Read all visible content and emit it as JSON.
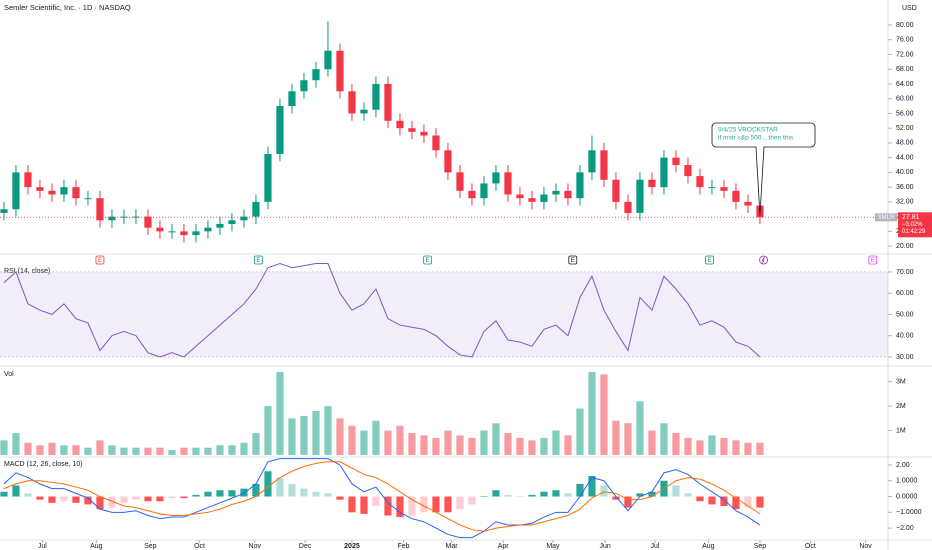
{
  "chart_data": [
    {
      "type": "candlestick",
      "title": "Semler Scientific, Inc. · 1D · NASDAQ",
      "unit": "USD",
      "up_color": "#089981",
      "down_color": "#f23645",
      "xlim": [
        -0.33,
        73.67
      ],
      "xticks": [
        {
          "value": 3.2,
          "label": "Jul"
        },
        {
          "value": 7.7,
          "label": "Aug"
        },
        {
          "value": 12.2,
          "label": "Sep"
        },
        {
          "value": 16.3,
          "label": "Oct"
        },
        {
          "value": 20.9,
          "label": "Nov"
        },
        {
          "value": 25.1,
          "label": "Dec"
        },
        {
          "value": 29,
          "label": "2025"
        },
        {
          "value": 33.3,
          "label": "Feb"
        },
        {
          "value": 37.3,
          "label": "Mar"
        },
        {
          "value": 41.6,
          "label": "Apr"
        },
        {
          "value": 45.75,
          "label": "May"
        },
        {
          "value": 50.1,
          "label": "Jun"
        },
        {
          "value": 54.25,
          "label": "Jul"
        },
        {
          "value": 58.7,
          "label": "Aug"
        },
        {
          "value": 63,
          "label": "Sep"
        },
        {
          "value": 67.2,
          "label": "Oct"
        },
        {
          "value": 71.8,
          "label": "Nov"
        }
      ],
      "ylim": [
        18.4,
        84.6
      ],
      "yticks": [
        {
          "value": 20,
          "label": "20.00"
        },
        {
          "value": 24,
          "label": "24.00"
        },
        {
          "value": 28,
          "label": "28.00"
        },
        {
          "value": 32,
          "label": "32.00"
        },
        {
          "value": 36,
          "label": "36.00"
        },
        {
          "value": 40,
          "label": "40.00"
        },
        {
          "value": 44,
          "label": "44.00"
        },
        {
          "value": 48,
          "label": "48.00"
        },
        {
          "value": 52,
          "label": "52.00"
        },
        {
          "value": 56,
          "label": "56.00"
        },
        {
          "value": 60,
          "label": "60.00"
        },
        {
          "value": 64,
          "label": "64.00"
        },
        {
          "value": 68,
          "label": "68.00"
        },
        {
          "value": 72,
          "label": "72.00"
        },
        {
          "value": 76,
          "label": "76.00"
        },
        {
          "value": 80,
          "label": "80.00"
        }
      ],
      "open": [
        29,
        30,
        40,
        36,
        35,
        34,
        36,
        33,
        33,
        27,
        28,
        28,
        28,
        25,
        24,
        24,
        23,
        24,
        25,
        26,
        27,
        28,
        32,
        45,
        58,
        62,
        65,
        68,
        73,
        62,
        56,
        57,
        64,
        54,
        52,
        51,
        50,
        46,
        40,
        35,
        33,
        37,
        40,
        34,
        33,
        32,
        34,
        35,
        33,
        40,
        46,
        38,
        32,
        29,
        38,
        36,
        44,
        42,
        39,
        36,
        36,
        35,
        32,
        31
      ],
      "high": [
        32,
        42,
        42,
        38,
        37,
        38,
        38,
        35,
        35,
        30,
        30,
        30,
        30,
        27,
        26,
        26,
        26,
        27,
        28,
        29,
        30,
        34,
        47,
        60,
        64,
        67,
        70,
        81,
        75,
        64,
        59,
        66,
        66,
        56,
        54,
        53,
        52,
        48,
        42,
        37,
        39,
        42,
        42,
        36,
        35,
        36,
        37,
        37,
        42,
        50,
        48,
        40,
        34,
        40,
        40,
        46,
        46,
        44,
        41,
        38,
        38,
        37,
        34,
        33
      ],
      "low": [
        27,
        28,
        34,
        33,
        32,
        32,
        31,
        31,
        25,
        25,
        26,
        26,
        23,
        22,
        22,
        21,
        21,
        22,
        23,
        24,
        25,
        26,
        30,
        43,
        56,
        60,
        63,
        66,
        60,
        54,
        54,
        55,
        52,
        50,
        49,
        48,
        44,
        38,
        33,
        31,
        31,
        35,
        32,
        31,
        30,
        30,
        32,
        31,
        31,
        38,
        36,
        30,
        27,
        27,
        34,
        34,
        40,
        37,
        34,
        34,
        33,
        30,
        29,
        26
      ],
      "close": [
        30,
        40,
        36,
        35,
        34,
        36,
        33,
        33,
        27,
        28,
        28,
        28,
        25,
        24,
        24,
        23,
        24,
        25,
        26,
        27,
        28,
        32,
        45,
        58,
        62,
        65,
        68,
        73,
        62,
        56,
        57,
        64,
        54,
        52,
        51,
        50,
        46,
        40,
        35,
        33,
        37,
        40,
        34,
        33,
        32,
        34,
        35,
        33,
        40,
        46,
        38,
        32,
        29,
        38,
        36,
        44,
        42,
        39,
        36,
        36,
        35,
        32,
        31,
        27.81
      ],
      "last_price": {
        "symbol": "SMLR",
        "value": 27.81,
        "change": "−3.02%",
        "countdown": "01:42:29"
      },
      "annotation": {
        "title": "9/4/25 VROCKSTAR",
        "text": "if mstr s&p 500... then this"
      },
      "events": [
        {
          "index": 8,
          "label": "E",
          "color": "#f23645"
        },
        {
          "index": 21.2,
          "label": "E",
          "color": "#089981"
        },
        {
          "index": 35.3,
          "label": "E",
          "color": "#089981"
        },
        {
          "index": 47.4,
          "label": "E",
          "color": "#131722"
        },
        {
          "index": 58.8,
          "label": "E",
          "color": "#089981"
        },
        {
          "index": 63.3,
          "color": "#9c27b0"
        },
        {
          "index": 72.4,
          "label": "E",
          "color": "#e040fb"
        }
      ]
    },
    {
      "type": "line",
      "title": "RSI (14, close)",
      "color": "#7e57c2",
      "band": [
        30,
        70
      ],
      "ylim": [
        26.2,
        74.7
      ],
      "yticks": [
        {
          "value": 30,
          "label": "30.00"
        },
        {
          "value": 40,
          "label": "40.00"
        },
        {
          "value": 50,
          "label": "50.00"
        },
        {
          "value": 60,
          "label": "60.00"
        },
        {
          "value": 70,
          "label": "70.00"
        }
      ],
      "values": [
        65,
        70,
        55,
        52,
        50,
        55,
        48,
        46,
        33,
        40,
        42,
        40,
        32,
        30,
        32,
        30,
        35,
        40,
        45,
        50,
        55,
        62,
        72,
        74,
        72,
        73,
        74,
        74,
        60,
        52,
        55,
        62,
        48,
        45,
        44,
        43,
        40,
        35,
        31,
        30,
        42,
        47,
        38,
        37,
        35,
        43,
        45,
        40,
        58,
        68,
        52,
        42,
        33,
        58,
        52,
        68,
        62,
        55,
        45,
        47,
        44,
        37,
        35,
        30
      ]
    },
    {
      "type": "volume",
      "title": "Vol",
      "ylim": [
        0,
        3600000
      ],
      "yticks": [
        {
          "value": 1000000,
          "label": "1M"
        },
        {
          "value": 2000000,
          "label": "2M"
        },
        {
          "value": 3000000,
          "label": "3M"
        }
      ],
      "values": [
        600000,
        900000,
        500000,
        400000,
        500000,
        400000,
        400000,
        300000,
        600000,
        400000,
        300000,
        300000,
        300000,
        300000,
        200000,
        300000,
        300000,
        300000,
        400000,
        400000,
        500000,
        900000,
        2000000,
        3400000,
        1500000,
        1600000,
        1800000,
        2000000,
        1500000,
        1200000,
        1000000,
        1400000,
        1000000,
        1200000,
        900000,
        800000,
        700000,
        1000000,
        800000,
        700000,
        1000000,
        1300000,
        900000,
        700000,
        600000,
        700000,
        1000000,
        800000,
        1900000,
        3400000,
        3300000,
        1400000,
        1300000,
        2200000,
        1000000,
        1300000,
        900000,
        700000,
        600000,
        800000,
        700000,
        600000,
        500000,
        500000
      ]
    },
    {
      "type": "macd",
      "title": "MACD (12, 26, close, 10)",
      "ylim": [
        -2.69,
        2.44
      ],
      "yticks": [
        {
          "value": -2,
          "label": "−2.00"
        },
        {
          "value": -1,
          "label": "−1.0000"
        },
        {
          "value": 0,
          "label": "0.0000"
        },
        {
          "value": 1,
          "label": "1.0000"
        },
        {
          "value": 2,
          "label": "2.00"
        }
      ],
      "histogram": {
        "colors": [
          "#26a69a",
          "#b2dfdb",
          "#ffcdd2",
          "#ff5252"
        ],
        "values": [
          0.3,
          0.7,
          0.2,
          -0.2,
          -0.4,
          -0.3,
          -0.4,
          -0.5,
          -0.8,
          -0.7,
          -0.4,
          -0.2,
          -0.3,
          -0.3,
          -0.1,
          -0.1,
          0.1,
          0.3,
          0.4,
          0.4,
          0.5,
          0.8,
          1.6,
          1.2,
          0.8,
          0.5,
          0.3,
          0.2,
          -0.2,
          -1.0,
          -1.1,
          -0.6,
          -1.2,
          -1.3,
          -1.2,
          -1.0,
          -1.0,
          -1.0,
          -0.8,
          -0.5,
          0.0,
          0.4,
          0.1,
          0.0,
          0.1,
          0.3,
          0.4,
          0.2,
          0.8,
          1.3,
          0.7,
          -0.2,
          -0.7,
          0.2,
          0.3,
          1.0,
          0.7,
          0.2,
          -0.3,
          -0.5,
          -0.6,
          -0.8,
          -0.7,
          -0.7
        ]
      },
      "series": [
        {
          "color": "#2962ff",
          "values": [
            0.8,
            1.5,
            1.2,
            0.8,
            0.5,
            0.5,
            0.2,
            -0.1,
            -0.8,
            -1.0,
            -1.0,
            -0.9,
            -1.2,
            -1.4,
            -1.3,
            -1.3,
            -1.0,
            -0.7,
            -0.4,
            -0.1,
            0.2,
            0.8,
            2.2,
            2.4,
            2.4,
            2.4,
            2.4,
            2.4,
            2.0,
            0.8,
            0.3,
            0.6,
            -0.4,
            -1.0,
            -1.4,
            -1.6,
            -2.0,
            -2.4,
            -2.6,
            -2.6,
            -2.2,
            -1.6,
            -1.8,
            -1.8,
            -1.7,
            -1.3,
            -1.0,
            -1.0,
            0.0,
            1.2,
            1.0,
            0.0,
            -0.9,
            0.0,
            0.3,
            1.5,
            1.7,
            1.4,
            0.8,
            0.3,
            -0.2,
            -0.9,
            -1.3,
            -1.8
          ]
        },
        {
          "color": "#ff6d00",
          "values": [
            0.5,
            0.8,
            1.0,
            1.0,
            0.9,
            0.8,
            0.6,
            0.4,
            0.0,
            -0.3,
            -0.6,
            -0.7,
            -0.9,
            -1.1,
            -1.2,
            -1.2,
            -1.1,
            -1.0,
            -0.8,
            -0.5,
            -0.3,
            0.0,
            0.6,
            1.2,
            1.6,
            1.9,
            2.1,
            2.2,
            2.2,
            1.8,
            1.4,
            1.2,
            0.8,
            0.3,
            -0.2,
            -0.6,
            -1.0,
            -1.4,
            -1.8,
            -2.1,
            -2.2,
            -2.0,
            -1.9,
            -1.8,
            -1.8,
            -1.6,
            -1.4,
            -1.2,
            -0.8,
            -0.1,
            0.3,
            0.2,
            -0.2,
            -0.2,
            0.0,
            0.5,
            1.0,
            1.2,
            1.1,
            0.8,
            0.4,
            -0.1,
            -0.6,
            -1.1
          ]
        }
      ]
    }
  ]
}
